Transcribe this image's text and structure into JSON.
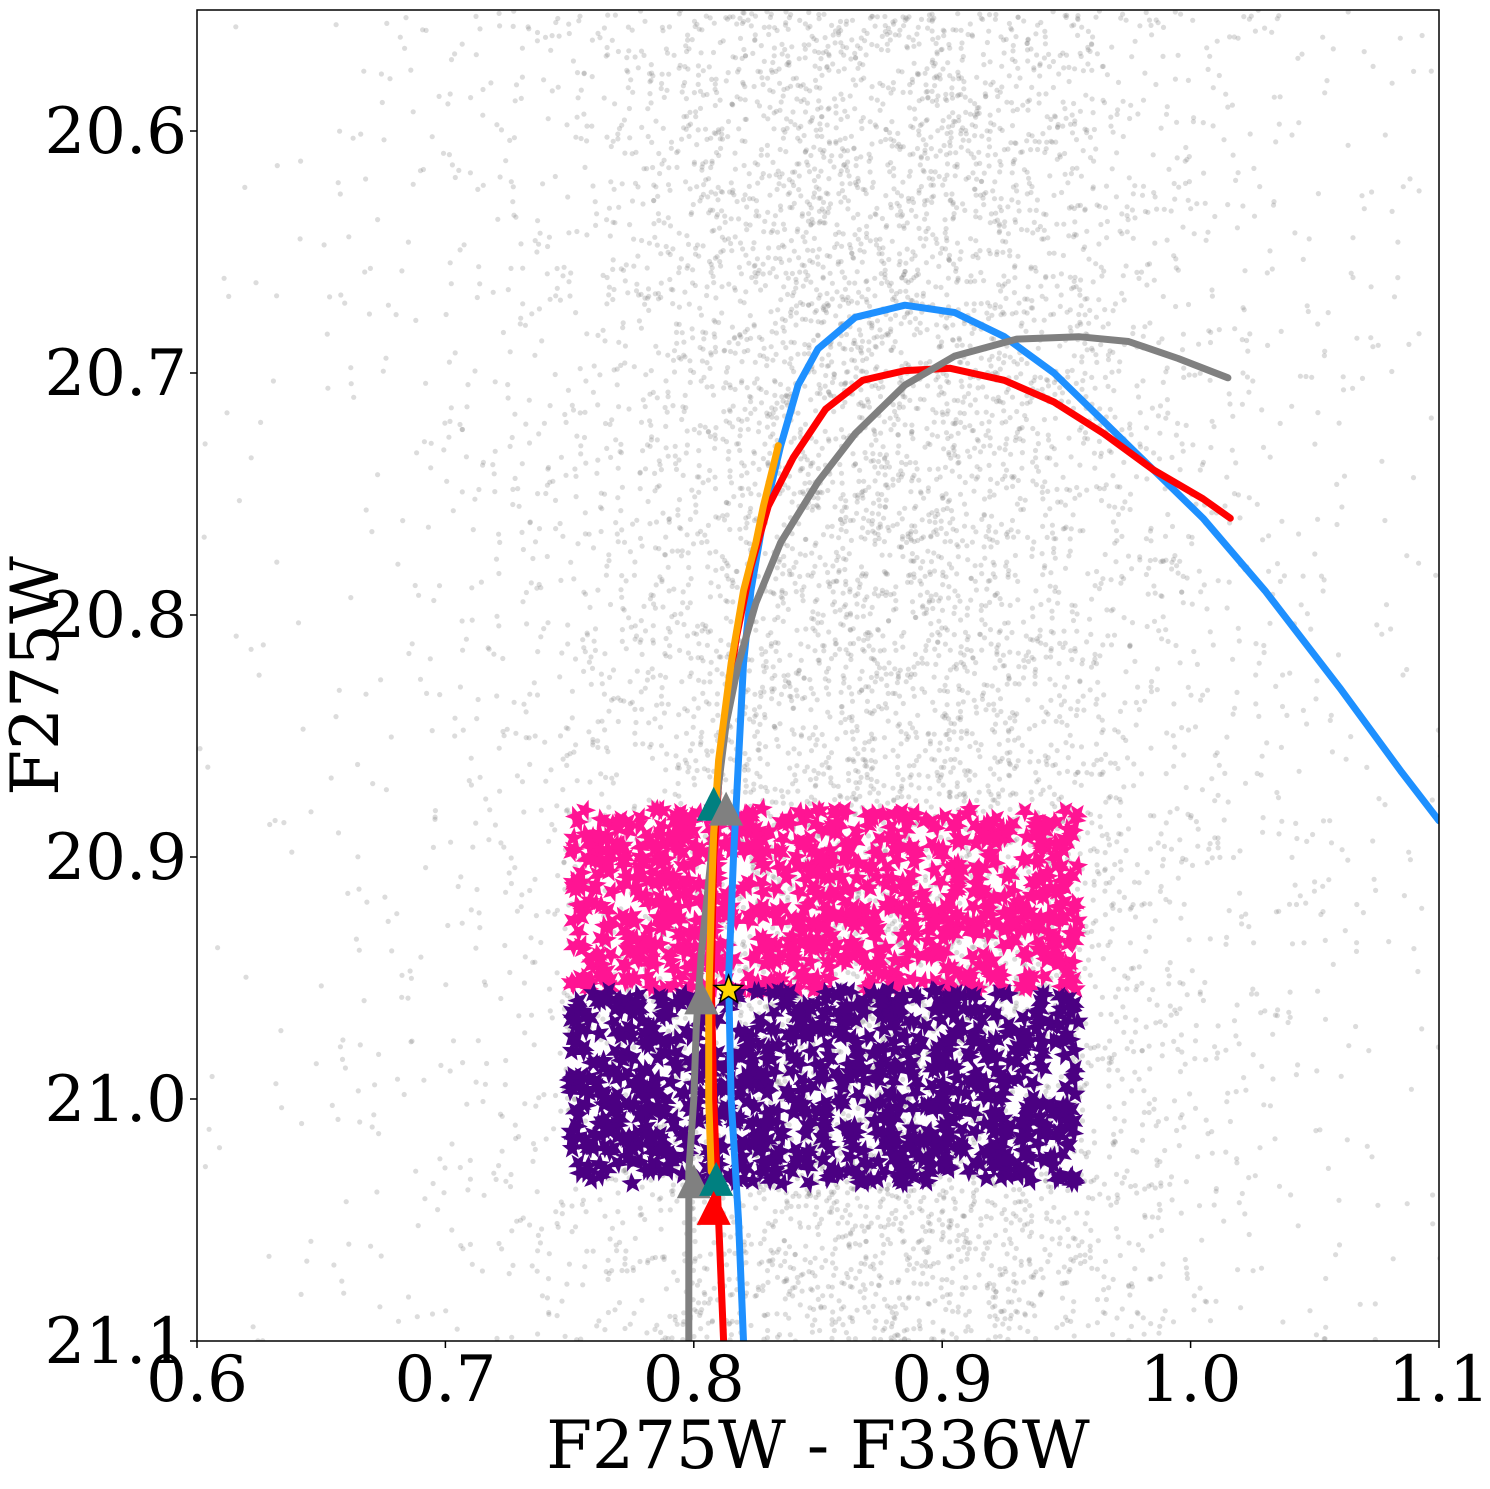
{
  "chart_data": {
    "type": "scatter",
    "title": "",
    "xlabel": "F275W - F336W",
    "ylabel": "F275W",
    "xlim": [
      0.6,
      1.1
    ],
    "ylim": [
      21.1,
      20.55
    ],
    "y_inverted": true,
    "grid": false,
    "x_ticks": [
      "0.6",
      "0.7",
      "0.8",
      "0.9",
      "1.0",
      "1.1"
    ],
    "x_tick_values": [
      0.6,
      0.7,
      0.8,
      0.9,
      1.0,
      1.1
    ],
    "y_ticks": [
      "20.6",
      "20.7",
      "20.8",
      "20.9",
      "21.0",
      "21.1"
    ],
    "y_tick_values": [
      20.6,
      20.7,
      20.8,
      20.9,
      21.0,
      21.1
    ],
    "background_stars": {
      "color": "#808080",
      "count": 9000,
      "x_center": 0.875,
      "x_spread": 0.07,
      "y_range": [
        20.55,
        21.1
      ]
    },
    "star_boxes": [
      {
        "color": "#ff1493",
        "x_range": [
          0.75,
          0.955
        ],
        "y_range": [
          20.88,
          20.955
        ],
        "count": 900
      },
      {
        "color": "#4b0082",
        "x_range": [
          0.75,
          0.955
        ],
        "y_range": [
          20.955,
          21.035
        ],
        "count": 950
      }
    ],
    "series": [
      {
        "color": "#1e90ff",
        "x": [
          0.82,
          0.818,
          0.815,
          0.814,
          0.816,
          0.818,
          0.82,
          0.823,
          0.828,
          0.835,
          0.842,
          0.85,
          0.865,
          0.885,
          0.905,
          0.925,
          0.945,
          0.965,
          0.985,
          1.005,
          1.03,
          1.06,
          1.085,
          1.1
        ],
        "y": [
          21.1,
          21.05,
          21.0,
          20.95,
          20.9,
          20.86,
          20.82,
          20.79,
          20.76,
          20.73,
          20.705,
          20.69,
          20.677,
          20.672,
          20.675,
          20.685,
          20.7,
          20.72,
          20.74,
          20.76,
          20.79,
          20.83,
          20.865,
          20.885
        ]
      },
      {
        "color": "#ff0000",
        "x": [
          0.812,
          0.81,
          0.808,
          0.807,
          0.808,
          0.81,
          0.813,
          0.817,
          0.823,
          0.83,
          0.84,
          0.853,
          0.868,
          0.885,
          0.903,
          0.925,
          0.945,
          0.965,
          0.985,
          1.005,
          1.016
        ],
        "y": [
          21.1,
          21.05,
          21.0,
          20.95,
          20.9,
          20.87,
          20.84,
          20.81,
          20.78,
          20.755,
          20.735,
          20.715,
          20.703,
          20.699,
          20.698,
          20.703,
          20.712,
          20.725,
          20.74,
          20.752,
          20.76
        ]
      },
      {
        "color": "#808080",
        "x": [
          0.798,
          0.798,
          0.8,
          0.801,
          0.803,
          0.805,
          0.807,
          0.81,
          0.813,
          0.818,
          0.825,
          0.835,
          0.85,
          0.865,
          0.885,
          0.905,
          0.93,
          0.955,
          0.975,
          0.995,
          1.015
        ],
        "y": [
          21.1,
          21.03,
          21.0,
          20.97,
          20.94,
          20.92,
          20.9,
          20.87,
          20.845,
          20.82,
          20.795,
          20.77,
          20.745,
          20.725,
          20.705,
          20.693,
          20.686,
          20.685,
          20.687,
          20.694,
          20.702
        ]
      },
      {
        "color": "#ffa500",
        "x": [
          0.807,
          0.806,
          0.806,
          0.807,
          0.808,
          0.81,
          0.815,
          0.82,
          0.825,
          0.828,
          0.834
        ],
        "y": [
          21.03,
          21.0,
          20.96,
          20.92,
          20.89,
          20.86,
          20.82,
          20.79,
          20.77,
          20.755,
          20.73
        ]
      }
    ],
    "markers": [
      {
        "shape": "triangle",
        "color": "#008080",
        "x": 0.808,
        "y": 20.878
      },
      {
        "shape": "triangle",
        "color": "#808080",
        "x": 0.813,
        "y": 20.88
      },
      {
        "shape": "triangle",
        "color": "#808080",
        "x": 0.803,
        "y": 20.958
      },
      {
        "shape": "triangle",
        "color": "#808080",
        "x": 0.8,
        "y": 21.034
      },
      {
        "shape": "triangle",
        "color": "#008080",
        "x": 0.809,
        "y": 21.033
      },
      {
        "shape": "triangle",
        "color": "#ff0000",
        "x": 0.808,
        "y": 21.045
      },
      {
        "shape": "star",
        "color": "#ffd700",
        "x": 0.814,
        "y": 20.955
      }
    ]
  }
}
